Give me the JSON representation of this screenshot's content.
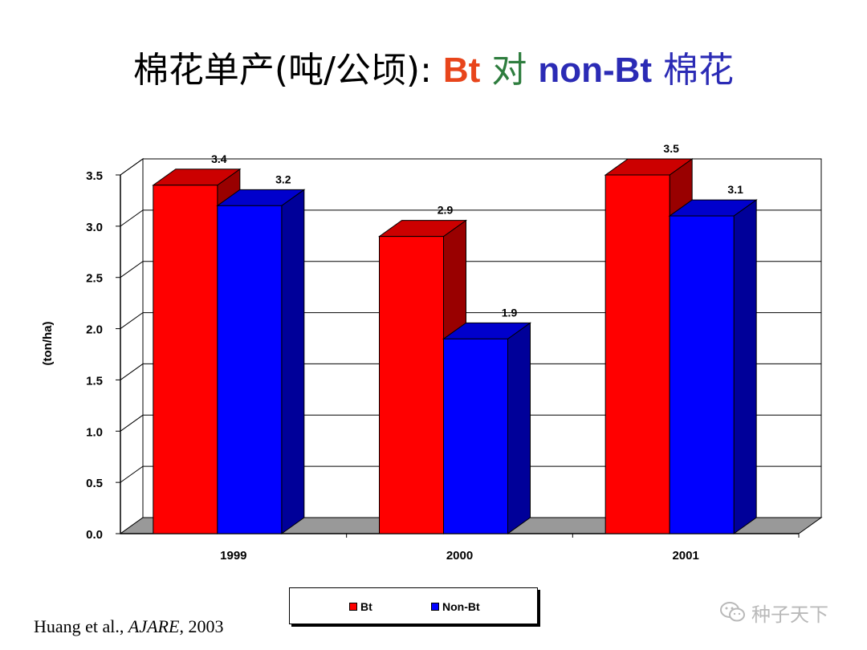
{
  "title": {
    "part1": "棉花单产(吨/公顷): ",
    "bt": "Bt",
    "dui": " 对 ",
    "nonbt": "non-Bt",
    "mianhua": " 棉花"
  },
  "colors": {
    "title_black": "#000000",
    "title_bt": "#e8451b",
    "title_dui": "#2e7d3e",
    "title_nonbt": "#2b2bb5",
    "bt_front": "#ff0000",
    "bt_top": "#cc0000",
    "bt_side": "#990000",
    "nonbt_front": "#0000ff",
    "nonbt_top": "#0000cc",
    "nonbt_side": "#000099",
    "floor": "#999999"
  },
  "chart_data": {
    "type": "bar",
    "categories": [
      "1999",
      "2000",
      "2001"
    ],
    "series": [
      {
        "name": "Bt",
        "values": [
          3.4,
          2.9,
          3.5
        ]
      },
      {
        "name": "Non-Bt",
        "values": [
          3.2,
          1.9,
          3.1
        ]
      }
    ],
    "ylabel": "(ton/ha)",
    "ylim": [
      0,
      3.5
    ],
    "yticks": [
      "0.0",
      "0.5",
      "1.0",
      "1.5",
      "2.0",
      "2.5",
      "3.0",
      "3.5"
    ],
    "grid": true,
    "legend_position": "bottom"
  },
  "legend": {
    "bt_label": "Bt",
    "nonbt_label": "Non-Bt"
  },
  "citation": {
    "authors": "Huang et al., ",
    "journal": "AJARE",
    "year": ", 2003"
  },
  "watermark": {
    "text": "种子天下",
    "icon": "wechat-icon"
  }
}
